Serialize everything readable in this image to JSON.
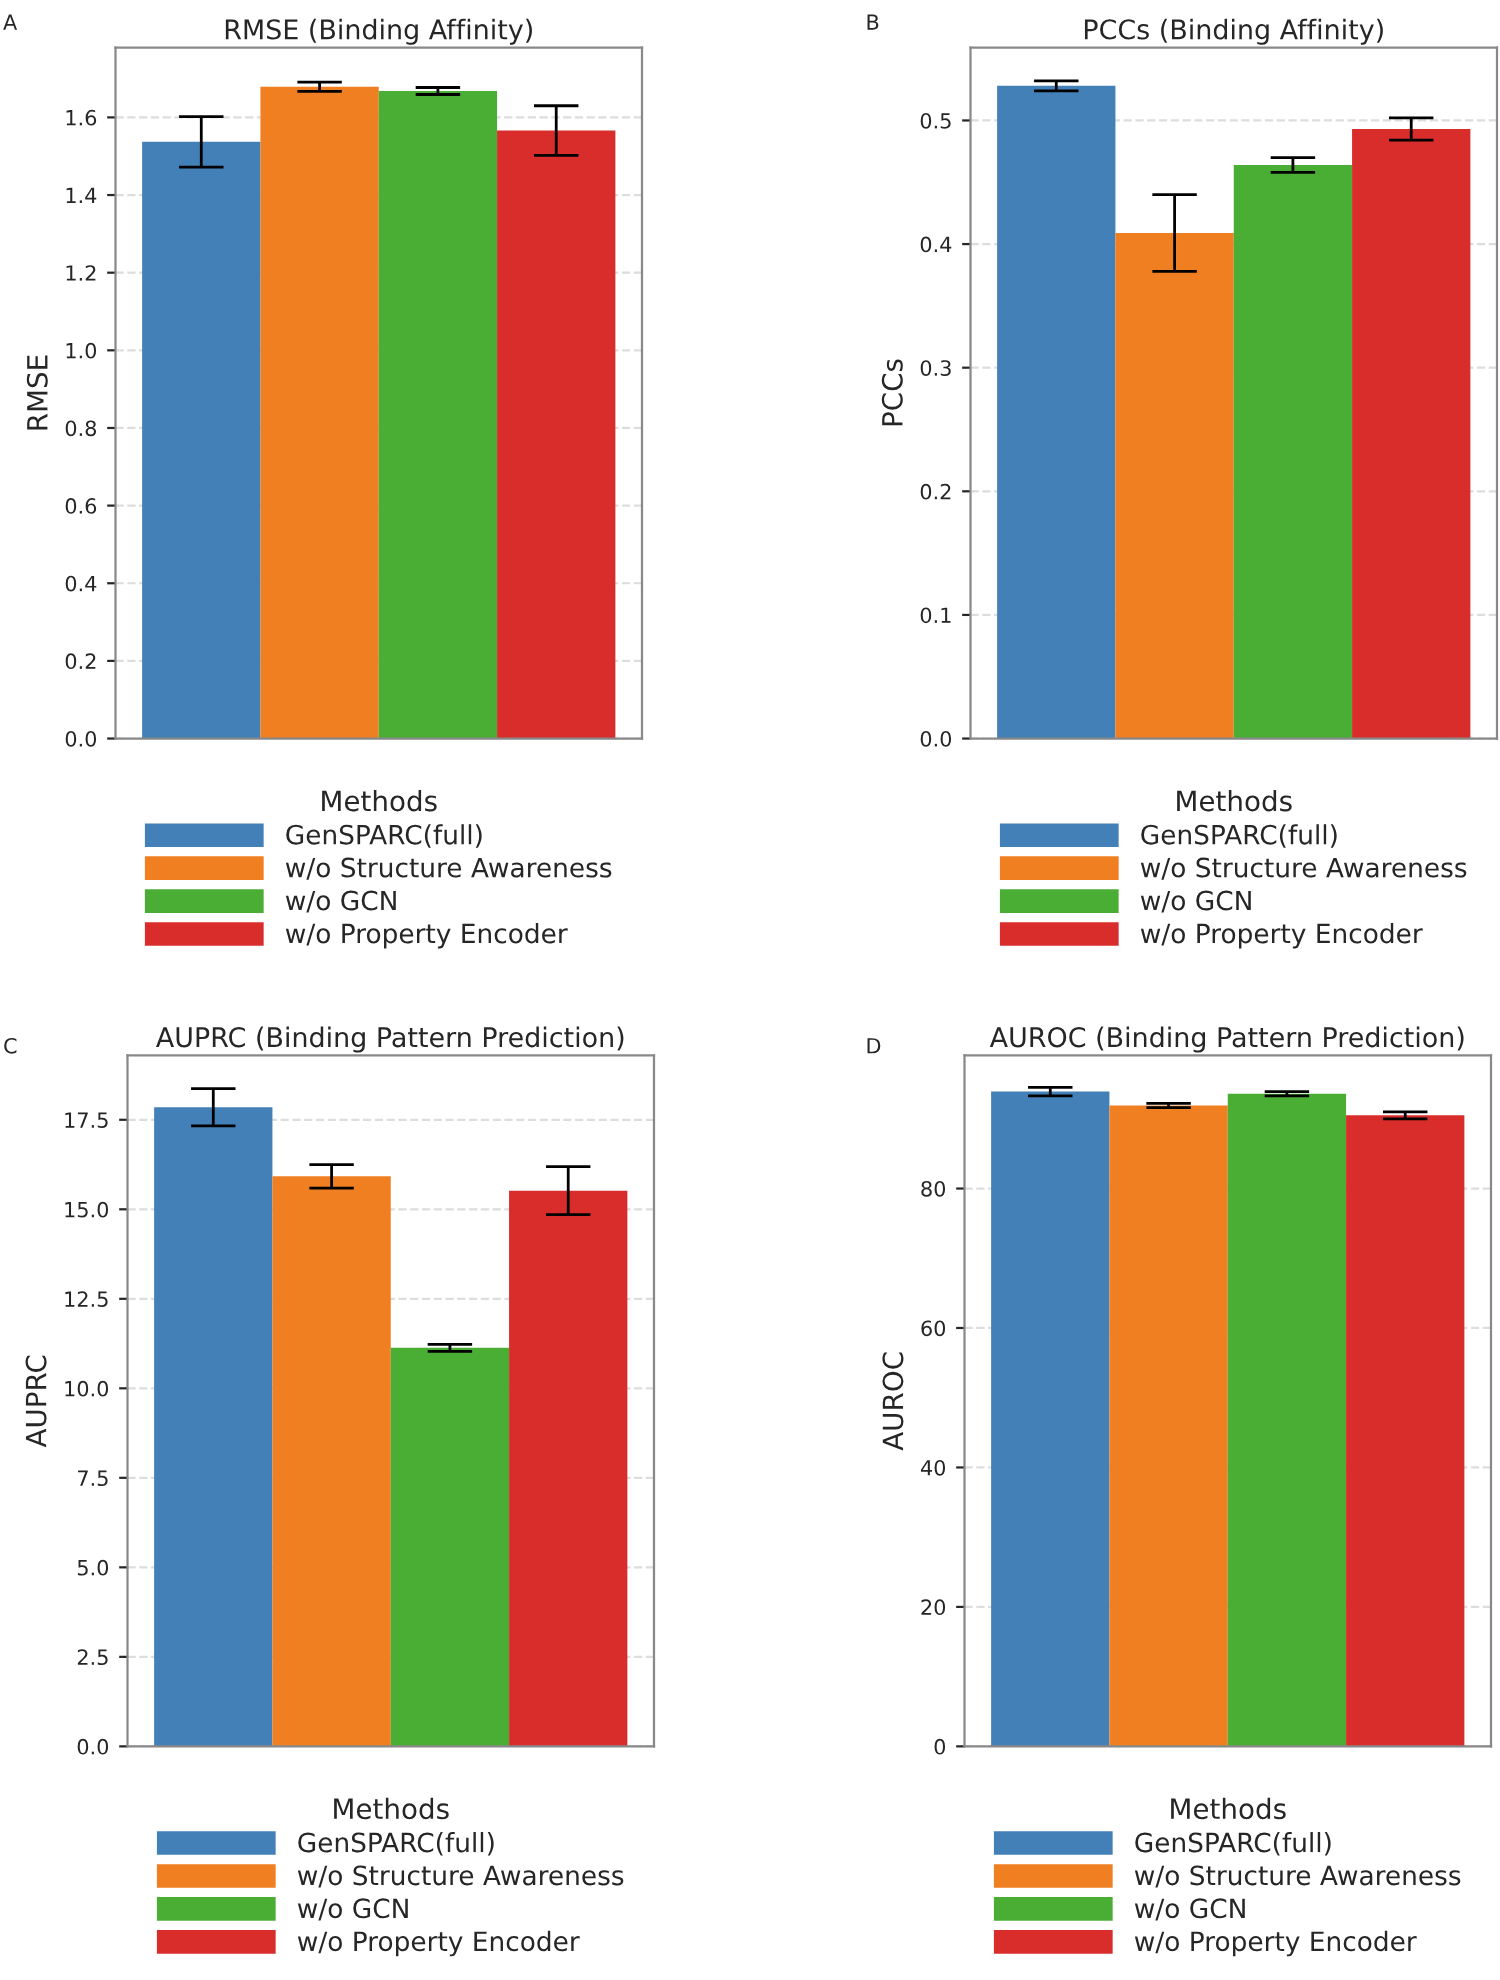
{
  "chart_data": [
    {
      "type": "bar",
      "title": "RMSE (Binding Affinity)",
      "ylabel": "RMSE",
      "legend_title": "Methods",
      "annotations": [
        "A"
      ],
      "categories": [
        null
      ],
      "ylim": [
        0,
        1.78
      ],
      "yticks": [
        {
          "value": 0,
          "label": "0.0"
        },
        0.2,
        0.4,
        0.6,
        0.8,
        {
          "value": 1,
          "label": "1.0"
        },
        1.2,
        1.4,
        1.6
      ],
      "grid": "y",
      "legend": "bottom",
      "tick_labels": "y",
      "series": [
        {
          "name": "GenSPARC(full)",
          "color": "#4380b8",
          "values": [
            1.537
          ],
          "errors": [
            0.065
          ]
        },
        {
          "name": "w/o Structure Awareness",
          "color": "#f07f22",
          "values": [
            1.679
          ],
          "errors": [
            0.012
          ]
        },
        {
          "name": "w/o GCN",
          "color": "#4aae35",
          "values": [
            1.668
          ],
          "errors": [
            0.009
          ]
        },
        {
          "name": "w/o Property Encoder",
          "color": "#d92d2c",
          "values": [
            1.566
          ],
          "errors": [
            0.064
          ]
        }
      ]
    },
    {
      "type": "bar",
      "title": "PCCs (Binding Affinity)",
      "ylabel": "PCCs",
      "legend_title": "Methods",
      "annotations": [
        "B"
      ],
      "categories": [
        null
      ],
      "ylim": [
        0,
        0.559
      ],
      "yticks": [
        {
          "value": 0,
          "label": "0.0"
        },
        0.1,
        0.2,
        0.3,
        0.4,
        0.5
      ],
      "grid": "y",
      "legend": "bottom",
      "tick_labels": "y",
      "series": [
        {
          "name": "GenSPARC(full)",
          "color": "#4380b8",
          "values": [
            0.528
          ],
          "errors": [
            0.004
          ]
        },
        {
          "name": "w/o Structure Awareness",
          "color": "#f07f22",
          "values": [
            0.409
          ],
          "errors": [
            0.031
          ]
        },
        {
          "name": "w/o GCN",
          "color": "#4aae35",
          "values": [
            0.464
          ],
          "errors": [
            0.006
          ]
        },
        {
          "name": "w/o Property Encoder",
          "color": "#d92d2c",
          "values": [
            0.493
          ],
          "errors": [
            0.009
          ]
        }
      ]
    },
    {
      "type": "bar",
      "title": "AUPRC (Binding Pattern Prediction)",
      "ylabel": "AUPRC",
      "legend_title": "Methods",
      "annotations": [
        "C"
      ],
      "categories": [
        null
      ],
      "ylim": [
        0,
        19.3
      ],
      "yticks": [
        {
          "value": 0,
          "label": "0.0"
        },
        2.5,
        {
          "value": 5,
          "label": "5.0"
        },
        7.5,
        {
          "value": 10,
          "label": "10.0"
        },
        12.5,
        {
          "value": 15,
          "label": "15.0"
        },
        17.5
      ],
      "grid": "y",
      "legend": "bottom",
      "tick_labels": "y",
      "series": [
        {
          "name": "GenSPARC(full)",
          "color": "#4380b8",
          "values": [
            17.85
          ],
          "errors": [
            0.52
          ]
        },
        {
          "name": "w/o Structure Awareness",
          "color": "#f07f22",
          "values": [
            15.92
          ],
          "errors": [
            0.33
          ]
        },
        {
          "name": "w/o GCN",
          "color": "#4aae35",
          "values": [
            11.13
          ],
          "errors": [
            0.1
          ]
        },
        {
          "name": "w/o Property Encoder",
          "color": "#d92d2c",
          "values": [
            15.52
          ],
          "errors": [
            0.67
          ]
        }
      ]
    },
    {
      "type": "bar",
      "title": "AUROC (Binding Pattern Prediction)",
      "ylabel": "AUROC",
      "legend_title": "Methods",
      "annotations": [
        "D"
      ],
      "categories": [
        null
      ],
      "ylim": [
        0,
        99.1
      ],
      "yticks": [
        0,
        20,
        40,
        60,
        80
      ],
      "grid": "y",
      "legend": "bottom",
      "tick_labels": "y",
      "series": [
        {
          "name": "GenSPARC(full)",
          "color": "#4380b8",
          "values": [
            93.9
          ],
          "errors": [
            0.6
          ]
        },
        {
          "name": "w/o Structure Awareness",
          "color": "#f07f22",
          "values": [
            91.9
          ],
          "errors": [
            0.3
          ]
        },
        {
          "name": "w/o GCN",
          "color": "#4aae35",
          "values": [
            93.6
          ],
          "errors": [
            0.3
          ]
        },
        {
          "name": "w/o Property Encoder",
          "color": "#d92d2c",
          "values": [
            90.5
          ],
          "errors": [
            0.5
          ]
        }
      ]
    }
  ]
}
